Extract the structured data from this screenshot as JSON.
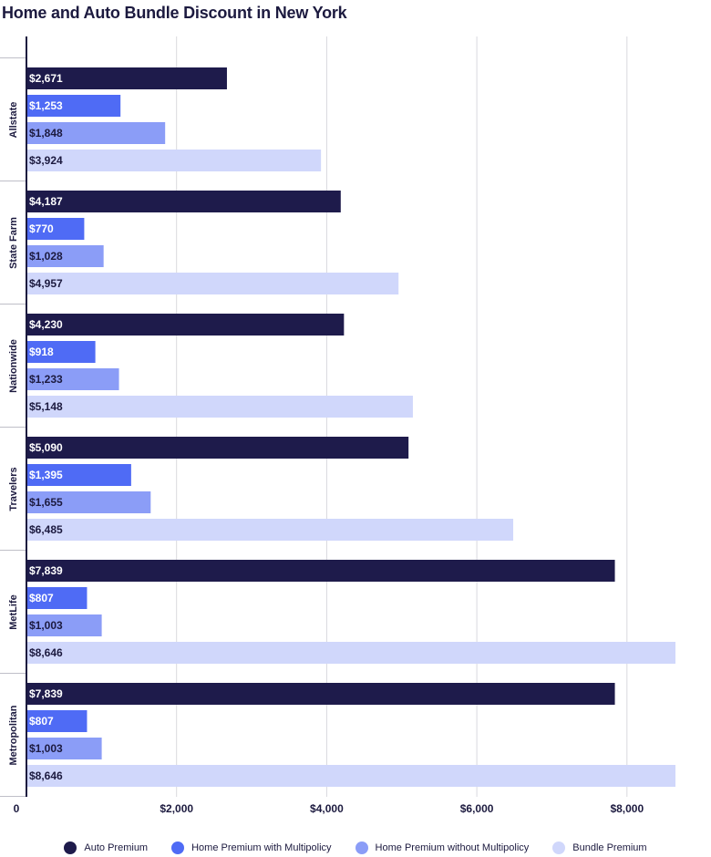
{
  "title": "Home and Auto Bundle Discount in New York",
  "chart_data": {
    "type": "bar",
    "orientation": "horizontal",
    "title": "Home and Auto Bundle Discount in New York",
    "categories": [
      "Allstate",
      "State Farm",
      "Nationwide",
      "Travelers",
      "MetLife",
      "Metropolitan"
    ],
    "series": [
      {
        "name": "Auto Premium",
        "color": "#1e1b4b",
        "label_color": "#ffffff",
        "values": [
          2671,
          4187,
          4230,
          5090,
          7839,
          7839
        ],
        "labels": [
          "$2,671",
          "$4,187",
          "$4,230",
          "$5,090",
          "$7,839",
          "$7,839"
        ]
      },
      {
        "name": "Home Premium with Multipolicy",
        "color": "#4f6bf5",
        "label_color": "#ffffff",
        "values": [
          1253,
          770,
          918,
          1395,
          807,
          807
        ],
        "labels": [
          "$1,253",
          "$770",
          "$918",
          "$1,395",
          "$807",
          "$807"
        ]
      },
      {
        "name": "Home Premium without Multipolicy",
        "color": "#8b9df7",
        "label_color": "#1c1a3f",
        "values": [
          1848,
          1028,
          1233,
          1655,
          1003,
          1003
        ],
        "labels": [
          "$1,848",
          "$1,028",
          "$1,233",
          "$1,655",
          "$1,003",
          "$1,003"
        ]
      },
      {
        "name": "Bundle Premium",
        "color": "#d0d7fb",
        "label_color": "#1c1a3f",
        "values": [
          3924,
          4957,
          5148,
          6485,
          8646,
          8646
        ],
        "labels": [
          "$3,924",
          "$4,957",
          "$5,148",
          "$6,485",
          "$8,646",
          "$8,646"
        ]
      }
    ],
    "x_ticks": [
      0,
      2000,
      4000,
      6000,
      8000
    ],
    "x_tick_labels": [
      "0",
      "$2,000",
      "$4,000",
      "$6,000",
      "$8,000"
    ],
    "xlim": [
      0,
      8646
    ],
    "grid": "vertical",
    "legend_position": "bottom"
  }
}
